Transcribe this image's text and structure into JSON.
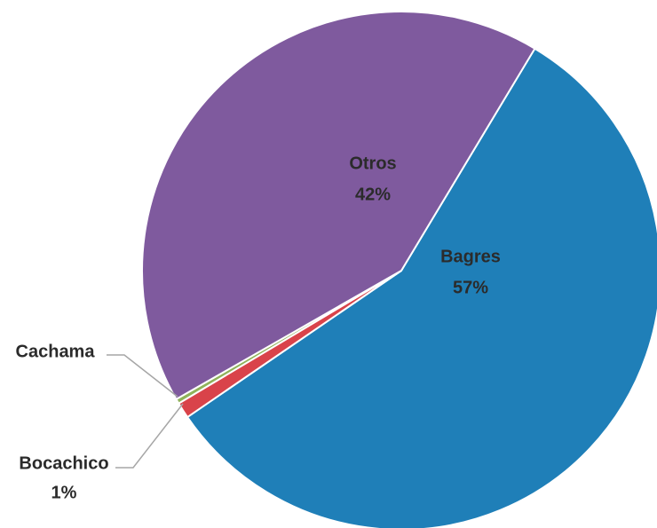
{
  "chart_data": {
    "type": "pie",
    "categories": [
      "Bagres",
      "Bocachico",
      "Cachama",
      "Otros"
    ],
    "values": [
      57,
      1,
      0.3,
      42
    ],
    "value_labels": [
      "57%",
      "1%",
      null,
      "42%"
    ],
    "colors": [
      "#1f7fb8",
      "#d9434a",
      "#8fb35a",
      "#7f5a9e"
    ]
  }
}
